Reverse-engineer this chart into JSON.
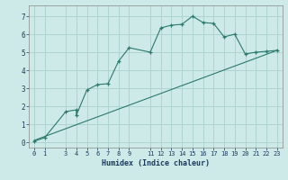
{
  "xlabel": "Humidex (Indice chaleur)",
  "background_color": "#ceeae8",
  "grid_color": "#aed4d0",
  "line_color": "#2a7a6e",
  "xlim": [
    -0.5,
    23.5
  ],
  "ylim": [
    -0.3,
    7.6
  ],
  "xticks": [
    0,
    1,
    3,
    4,
    5,
    6,
    7,
    8,
    9,
    11,
    12,
    13,
    14,
    15,
    16,
    17,
    18,
    19,
    20,
    21,
    22,
    23
  ],
  "yticks": [
    0,
    1,
    2,
    3,
    4,
    5,
    6,
    7
  ],
  "curve1_x": [
    0,
    1,
    3,
    4,
    4,
    5,
    6,
    7,
    8,
    9,
    11,
    12,
    13,
    14,
    15,
    16,
    17,
    18,
    19,
    20,
    21,
    22,
    23
  ],
  "curve1_y": [
    0.05,
    0.25,
    1.7,
    1.8,
    1.5,
    2.9,
    3.2,
    3.25,
    4.5,
    5.25,
    5.0,
    6.35,
    6.5,
    6.55,
    7.0,
    6.65,
    6.6,
    5.85,
    6.0,
    4.9,
    5.0,
    5.05,
    5.1
  ],
  "curve2_x": [
    0,
    23
  ],
  "curve2_y": [
    0.1,
    5.1
  ]
}
